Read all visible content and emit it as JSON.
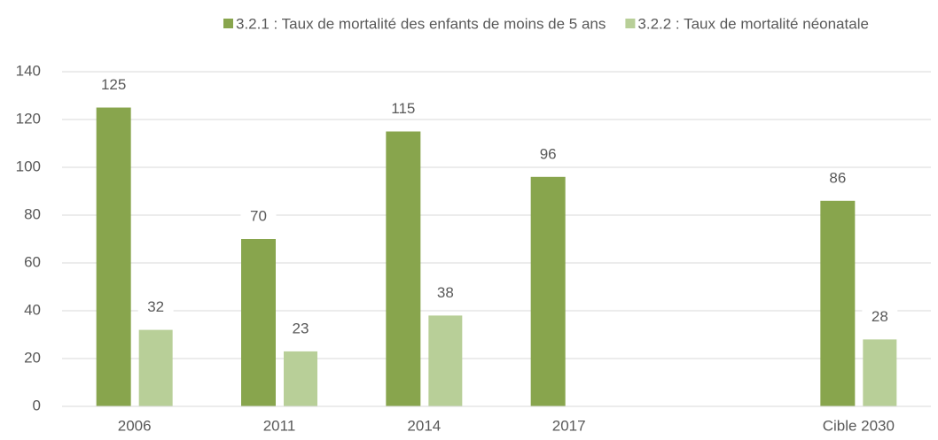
{
  "chart_data": {
    "type": "bar",
    "categories": [
      "2006",
      "2011",
      "2014",
      "2017",
      null,
      "Cible 2030"
    ],
    "series": [
      {
        "name": "3.2.1 : Taux de mortalité des enfants de moins de 5 ans",
        "color": "#88a54d",
        "values": [
          125,
          70,
          115,
          96,
          null,
          86
        ]
      },
      {
        "name": "3.2.2 : Taux de mortalité néonatale",
        "color": "#b8cf98",
        "values": [
          32,
          23,
          38,
          null,
          null,
          28
        ]
      }
    ],
    "ylim": [
      0,
      140
    ],
    "yticks": [
      0,
      20,
      40,
      60,
      80,
      100,
      120,
      140
    ],
    "grid": true,
    "legend": "top"
  }
}
